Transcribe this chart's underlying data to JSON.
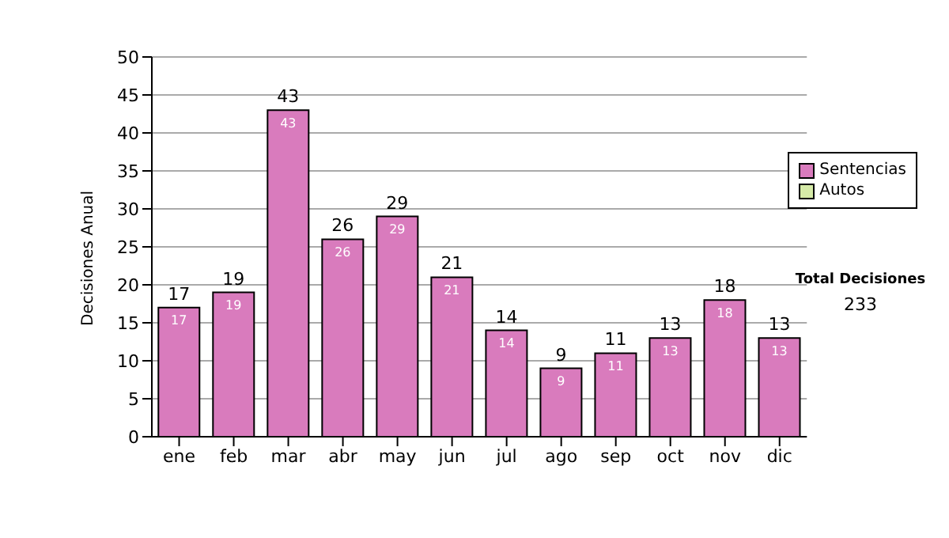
{
  "chart_data": {
    "type": "bar",
    "ylabel": "Decisiones Anual",
    "categories": [
      "ene",
      "feb",
      "mar",
      "abr",
      "may",
      "jun",
      "jul",
      "ago",
      "sep",
      "oct",
      "nov",
      "dic"
    ],
    "series": [
      {
        "name": "Sentencias",
        "color": "#d97bbd",
        "values": [
          17,
          19,
          43,
          26,
          29,
          21,
          14,
          9,
          11,
          13,
          18,
          13
        ]
      },
      {
        "name": "Autos",
        "color": "#d6eba8",
        "values": [
          null,
          null,
          null,
          null,
          null,
          null,
          null,
          null,
          null,
          null,
          null,
          null
        ]
      }
    ],
    "stacked": true,
    "totals": [
      "17",
      "19",
      "43",
      "26",
      "29",
      "21",
      "14",
      "9",
      "11",
      "13",
      "18",
      "13"
    ],
    "ylim": [
      0,
      50
    ],
    "yticks": [
      0,
      5,
      10,
      15,
      20,
      25,
      30,
      35,
      40,
      45,
      50
    ],
    "grid": "y",
    "legend": "right",
    "data_labels": true,
    "annotations": [
      "Total Decisiones",
      "233"
    ]
  }
}
